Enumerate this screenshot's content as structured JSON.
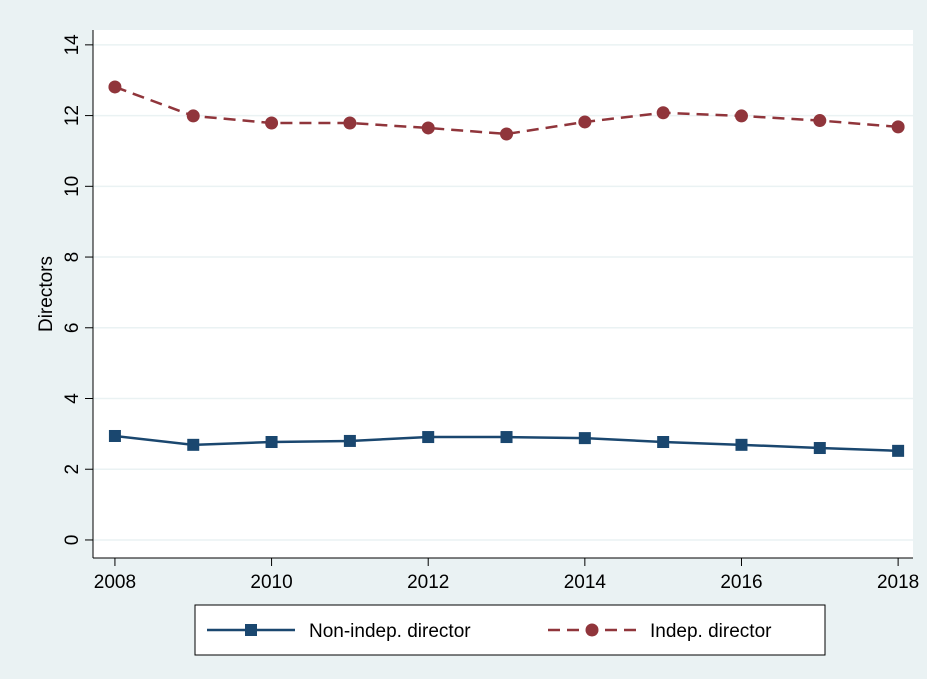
{
  "chart_data": {
    "type": "line",
    "y_label": "Directors",
    "x": [
      2008,
      2009,
      2010,
      2011,
      2012,
      2013,
      2014,
      2015,
      2016,
      2017,
      2018
    ],
    "series": [
      {
        "name": "Non-indep. director",
        "color": "#1a476f",
        "marker": "square",
        "dash": false,
        "values": [
          2.94,
          2.69,
          2.77,
          2.8,
          2.91,
          2.91,
          2.88,
          2.77,
          2.69,
          2.6,
          2.52
        ]
      },
      {
        "name": "Indep. director",
        "color": "#90353b",
        "marker": "circle",
        "dash": true,
        "values": [
          12.81,
          11.99,
          11.79,
          11.79,
          11.65,
          11.48,
          11.82,
          12.08,
          11.99,
          11.86,
          11.68
        ]
      }
    ],
    "xlim": [
      2007.72,
      2018.19
    ],
    "xticks": [
      2008,
      2010,
      2012,
      2014,
      2016,
      2018
    ],
    "ylim": [
      -0.51,
      14.42
    ],
    "yticks": [
      0,
      2,
      4,
      6,
      8,
      10,
      12,
      14
    ],
    "grid": true,
    "legend": "bottom"
  }
}
